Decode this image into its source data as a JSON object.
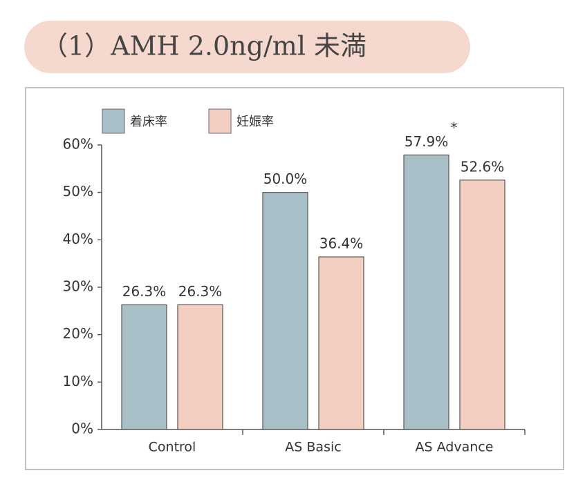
{
  "chart_data": {
    "type": "bar",
    "title": "（1）AMH 2.0ng/ml 未満",
    "categories": [
      "Control",
      "AS Basic",
      "AS Advance"
    ],
    "series": [
      {
        "name": "着床率",
        "color": "#a9bfc7",
        "values": [
          26.3,
          50.0,
          57.9
        ],
        "value_labels": [
          "26.3%",
          "50.0%",
          "57.9%"
        ]
      },
      {
        "name": "妊娠率",
        "color": "#f3cfc2",
        "values": [
          26.3,
          36.4,
          52.6
        ],
        "value_labels": [
          "26.3%",
          "36.4%",
          "52.6%"
        ]
      }
    ],
    "annotation": "*",
    "ylim": [
      0,
      60
    ],
    "yticks": [
      {
        "value": 0,
        "label": "0%"
      },
      {
        "value": 10,
        "label": "10%"
      },
      {
        "value": 20,
        "label": "20%"
      },
      {
        "value": 30,
        "label": "30%"
      },
      {
        "value": 40,
        "label": "40%"
      },
      {
        "value": 50,
        "label": "50%"
      },
      {
        "value": 60,
        "label": "60%"
      }
    ]
  }
}
